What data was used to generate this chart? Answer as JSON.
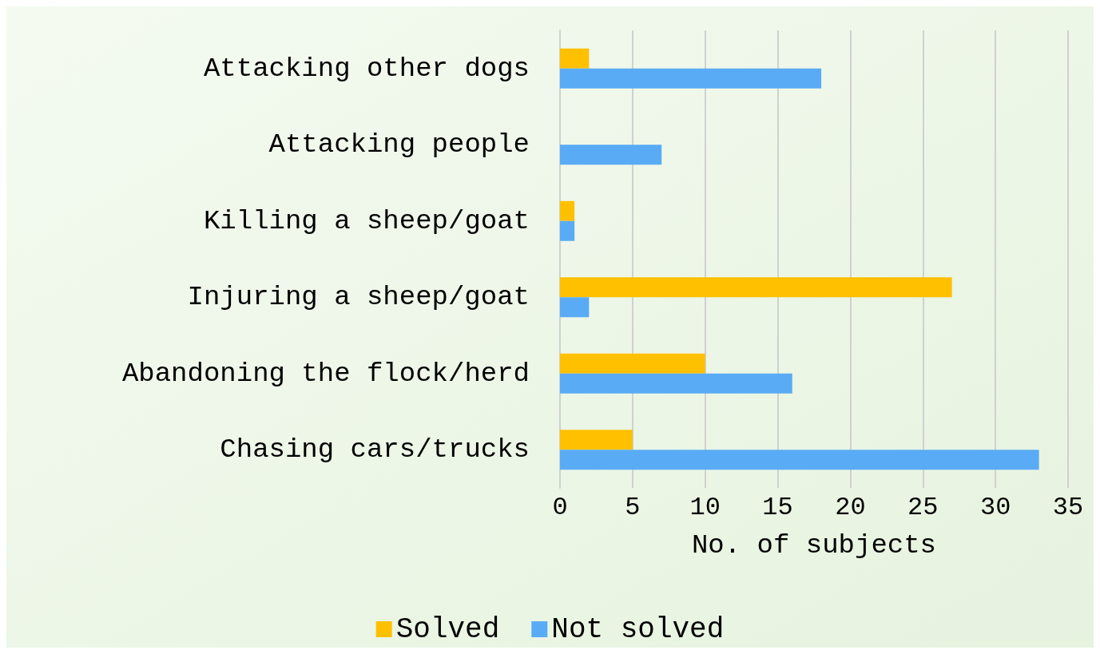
{
  "chart_data": {
    "type": "bar",
    "orientation": "horizontal",
    "xlabel": "No. of subjects",
    "categories": [
      "Attacking other dogs",
      "Attacking people",
      "Killing a sheep/goat",
      "Injuring a sheep/goat",
      "Abandoning the flock/herd",
      "Chasing cars/trucks"
    ],
    "series": [
      {
        "name": "Solved",
        "color": "#ffc000",
        "values": [
          2,
          0,
          1,
          27,
          10,
          5
        ]
      },
      {
        "name": "Not solved",
        "color": "#5aabf5",
        "values": [
          18,
          7,
          1,
          2,
          16,
          33
        ]
      }
    ],
    "xlim": [
      0,
      35
    ],
    "xticks": [
      0,
      5,
      10,
      15,
      20,
      25,
      30,
      35
    ],
    "grid": "x",
    "legend": "bottom"
  }
}
